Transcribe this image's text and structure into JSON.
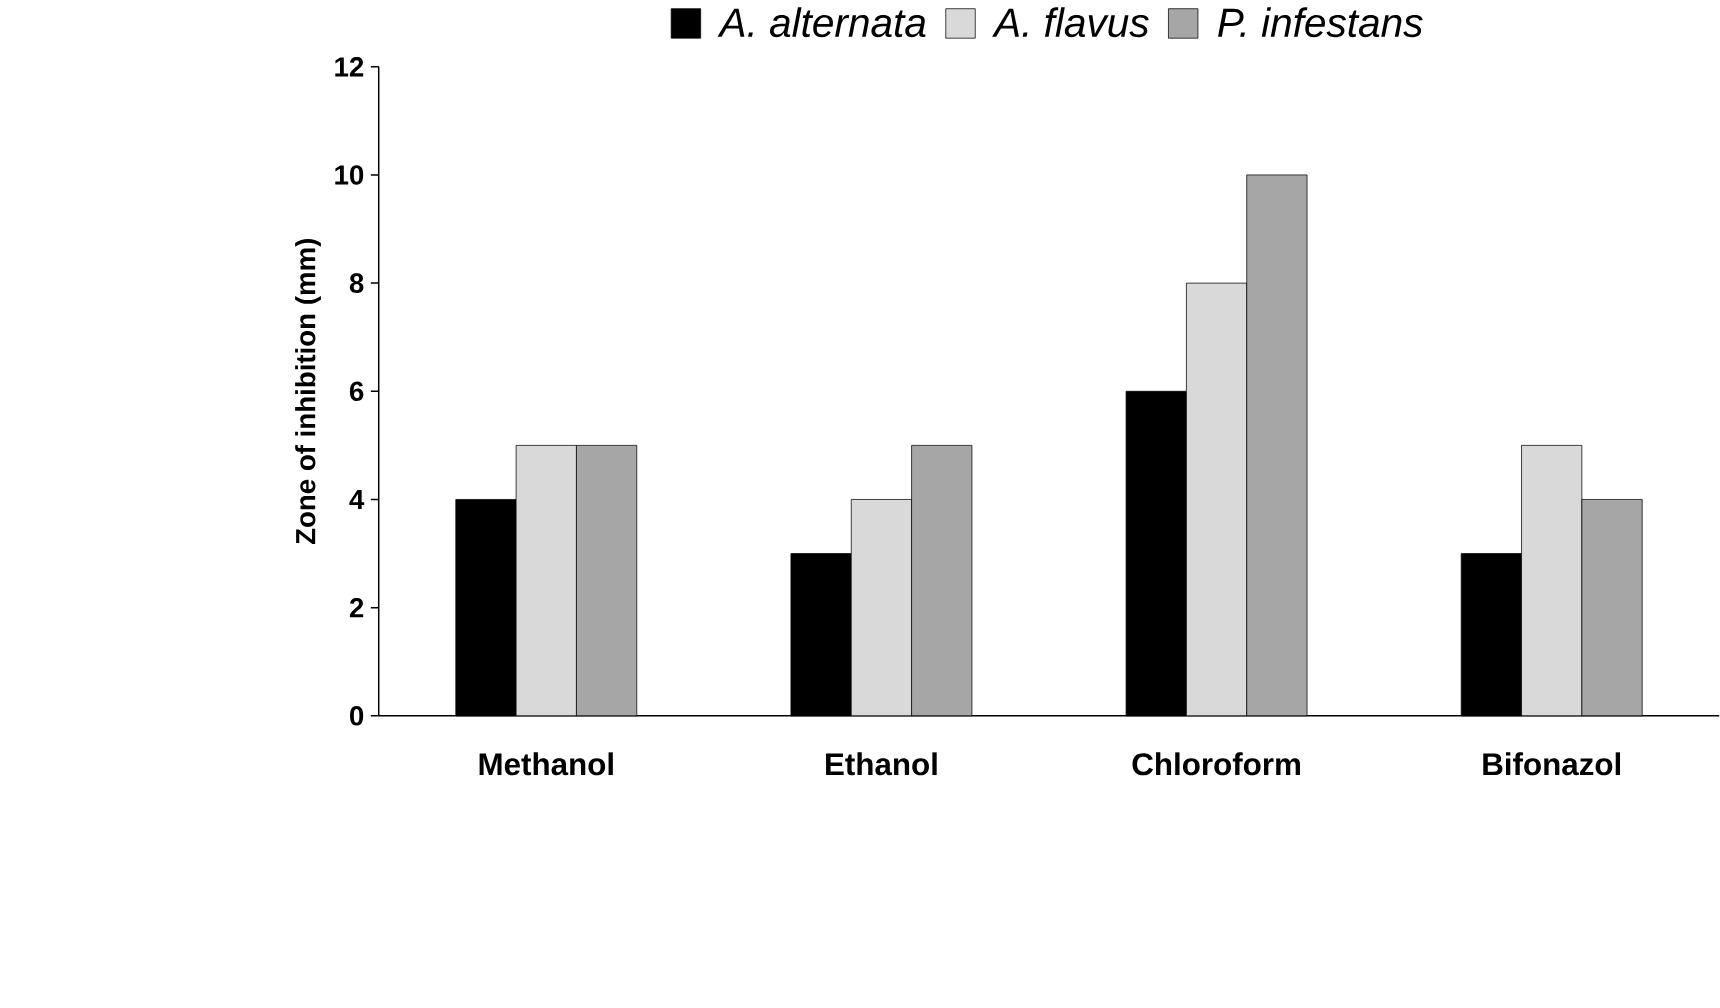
{
  "chart_data": {
    "type": "bar",
    "ylabel": "Zone of inhibition (mm)",
    "categories": [
      "Methanol",
      "Ethanol",
      "Chloroform",
      "Bifonazol"
    ],
    "series": [
      {
        "name": "A. alternata",
        "color": "#000000",
        "values": [
          4,
          3,
          6,
          3
        ]
      },
      {
        "name": "A. flavus",
        "color": "#d9d9d9",
        "values": [
          5,
          4,
          8,
          5
        ]
      },
      {
        "name": "P. infestans",
        "color": "#a6a6a6",
        "values": [
          5,
          5,
          10,
          4
        ]
      }
    ],
    "ylim": [
      0,
      12
    ],
    "yticks": [
      0,
      2,
      4,
      6,
      8,
      10,
      12
    ],
    "legend": "top",
    "grid": false
  }
}
